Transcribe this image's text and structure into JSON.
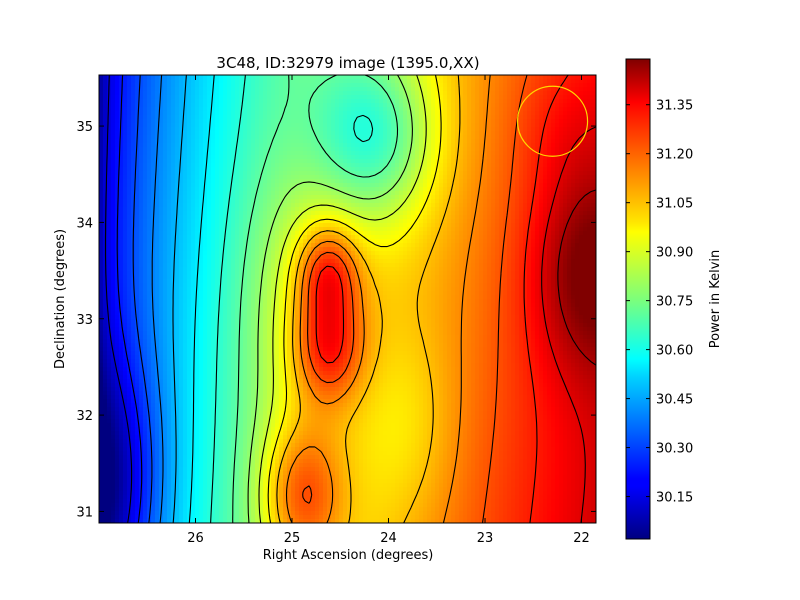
{
  "chart_data": {
    "type": "heatmap",
    "title": "3C48, ID:32979 image (1395.0,XX)",
    "xlabel": "Right Ascension (degrees)",
    "ylabel": "Declination (degrees)",
    "xlim": [
      27.0,
      21.85
    ],
    "ylim": [
      30.88,
      35.53
    ],
    "x_ticks": [
      26,
      25,
      24,
      23,
      22
    ],
    "y_ticks": [
      31,
      32,
      33,
      34,
      35
    ],
    "colorbar": {
      "label": "Power in Kelvin",
      "colormap": "jet",
      "range": [
        30.02,
        31.49
      ],
      "ticks": [
        30.15,
        30.3,
        30.45,
        30.6,
        30.75,
        30.9,
        31.05,
        31.2,
        31.35
      ]
    },
    "features": [
      {
        "kind": "maximum",
        "ra": 21.95,
        "dec": 33.5,
        "value": 31.47
      },
      {
        "kind": "local maximum",
        "ra": 24.63,
        "dec": 33.48,
        "value": 31.35
      },
      {
        "kind": "local maximum",
        "ra": 24.63,
        "dec": 32.7,
        "value": 31.35
      },
      {
        "kind": "local maximum",
        "ra": 24.9,
        "dec": 31.2,
        "value": 31.33
      },
      {
        "kind": "minimum",
        "ra": 26.95,
        "dec": 31.3,
        "value": 30.05
      },
      {
        "kind": "local minimum",
        "ra": 24.2,
        "dec": 35.1,
        "value": 30.72
      }
    ],
    "beam_marker": {
      "ra": 22.3,
      "dec": 35.05,
      "color": "#ffd700"
    },
    "contours": true
  },
  "colors": {
    "background": "#ffffff",
    "contour": "#000000",
    "beam": "#ffd700"
  }
}
